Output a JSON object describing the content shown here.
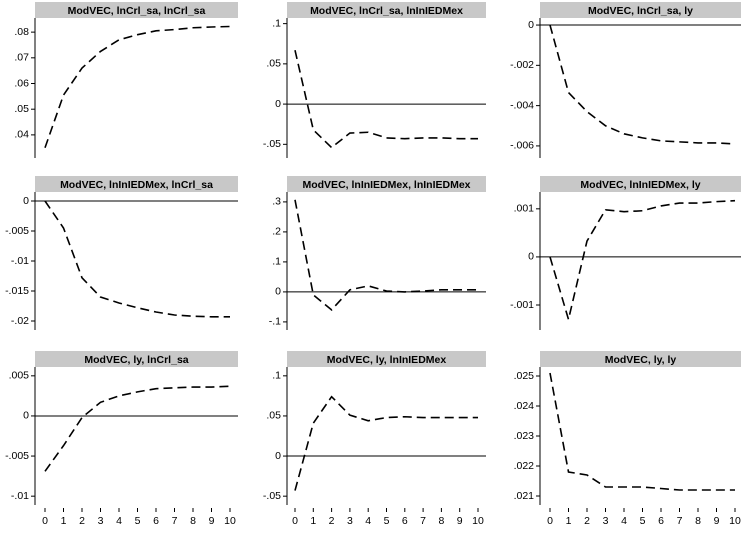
{
  "chart_data": [
    {
      "type": "line",
      "title": "ModVEC, lnCrl_sa, lnCrl_sa",
      "x": [
        0,
        1,
        2,
        3,
        4,
        5,
        6,
        7,
        8,
        9,
        10
      ],
      "values": [
        0.035,
        0.0555,
        0.066,
        0.0725,
        0.077,
        0.079,
        0.0805,
        0.081,
        0.0817,
        0.082,
        0.0822
      ],
      "ylim": [
        0.031,
        0.0855
      ],
      "yticks": [
        {
          "value": 0.04,
          "label": ".04"
        },
        {
          "value": 0.05,
          "label": ".05"
        },
        {
          "value": 0.06,
          "label": ".06"
        },
        {
          "value": 0.07,
          "label": ".07"
        },
        {
          "value": 0.08,
          "label": ".08"
        }
      ],
      "color": "#000000"
    },
    {
      "type": "line",
      "title": "ModVEC, lnCrl_sa, lnInIEDMex",
      "x": [
        0,
        1,
        2,
        3,
        4,
        5,
        6,
        7,
        8,
        9,
        10
      ],
      "values": [
        0.067,
        -0.032,
        -0.054,
        -0.036,
        -0.035,
        -0.042,
        -0.043,
        -0.042,
        -0.042,
        -0.043,
        -0.043
      ],
      "ylim": [
        -0.067,
        0.107
      ],
      "yticks": [
        {
          "value": -0.05,
          "label": "-.05"
        },
        0,
        {
          "value": 0.05,
          "label": ".05"
        },
        {
          "value": 0.1,
          "label": ".1"
        }
      ],
      "yline": 0,
      "color": "#000000"
    },
    {
      "type": "line",
      "title": "ModVEC, lnCrl_sa, ly",
      "x": [
        0,
        1,
        2,
        3,
        4,
        5,
        6,
        7,
        8,
        9,
        10
      ],
      "values": [
        0,
        -0.00335,
        -0.0043,
        -0.005,
        -0.0054,
        -0.0056,
        -0.00575,
        -0.0058,
        -0.00585,
        -0.00585,
        -0.0059
      ],
      "ylim": [
        -0.0066,
        0.00035
      ],
      "yticks": [
        {
          "value": -0.006,
          "label": "-.006"
        },
        {
          "value": -0.004,
          "label": "-.004"
        },
        {
          "value": -0.002,
          "label": "-.002"
        },
        0
      ],
      "yline": 0,
      "color": "#000000"
    },
    {
      "type": "line",
      "title": "ModVEC, lnInIEDMex, lnCrl_sa",
      "x": [
        0,
        1,
        2,
        3,
        4,
        5,
        6,
        7,
        8,
        9,
        10
      ],
      "values": [
        0,
        -0.0045,
        -0.0128,
        -0.016,
        -0.017,
        -0.0178,
        -0.0185,
        -0.019,
        -0.0192,
        -0.0193,
        -0.0193
      ],
      "ylim": [
        -0.0215,
        0.0015
      ],
      "yticks": [
        {
          "value": -0.02,
          "label": "-.02"
        },
        {
          "value": -0.015,
          "label": "-.015"
        },
        {
          "value": -0.01,
          "label": "-.01"
        },
        {
          "value": -0.005,
          "label": "-.005"
        },
        0
      ],
      "yline": 0,
      "color": "#000000"
    },
    {
      "type": "line",
      "title": "ModVEC, lnInIEDMex, lnInIEDMex",
      "x": [
        0,
        1,
        2,
        3,
        4,
        5,
        6,
        7,
        8,
        9,
        10
      ],
      "values": [
        0.307,
        -0.01,
        -0.06,
        0.007,
        0.02,
        0.003,
        0,
        0.003,
        0.007,
        0.007,
        0.007
      ],
      "ylim": [
        -0.127,
        0.333
      ],
      "yticks": [
        {
          "value": -0.1,
          "label": "-.1"
        },
        0,
        {
          "value": 0.1,
          "label": ".1"
        },
        {
          "value": 0.2,
          "label": ".2"
        },
        {
          "value": 0.3,
          "label": ".3"
        }
      ],
      "yline": 0,
      "color": "#000000"
    },
    {
      "type": "line",
      "title": "ModVEC, lnInIEDMex, ly",
      "x": [
        0,
        1,
        2,
        3,
        4,
        5,
        6,
        7,
        8,
        9,
        10
      ],
      "values": [
        0,
        -0.0013,
        0.00033,
        0.00098,
        0.00094,
        0.00096,
        0.00106,
        0.00112,
        0.00112,
        0.00115,
        0.00117
      ],
      "ylim": [
        -0.00152,
        0.00135
      ],
      "yticks": [
        {
          "value": -0.001,
          "label": "-.001"
        },
        0,
        {
          "value": 0.001,
          "label": ".001"
        }
      ],
      "yline": 0,
      "color": "#000000"
    },
    {
      "type": "line",
      "title": "ModVEC, ly, lnCrl_sa",
      "x": [
        0,
        1,
        2,
        3,
        4,
        5,
        6,
        7,
        8,
        9,
        10
      ],
      "values": [
        -0.0069,
        -0.0037,
        -0.0002,
        0.0017,
        0.0025,
        0.003,
        0.0034,
        0.0035,
        0.0036,
        0.0036,
        0.0037
      ],
      "ylim": [
        -0.0111,
        0.0061
      ],
      "yticks": [
        {
          "value": -0.01,
          "label": "-.01"
        },
        {
          "value": -0.005,
          "label": "-.005"
        },
        0,
        {
          "value": 0.005,
          "label": ".005"
        }
      ],
      "xticks": [
        0,
        1,
        2,
        3,
        4,
        5,
        6,
        7,
        8,
        9,
        10
      ],
      "yline": 0,
      "color": "#000000"
    },
    {
      "type": "line",
      "title": "ModVEC, ly, lnInIEDMex",
      "x": [
        0,
        1,
        2,
        3,
        4,
        5,
        6,
        7,
        8,
        9,
        10
      ],
      "values": [
        -0.043,
        0.041,
        0.074,
        0.051,
        0.044,
        0.048,
        0.049,
        0.048,
        0.048,
        0.048,
        0.048
      ],
      "ylim": [
        -0.061,
        0.111
      ],
      "yticks": [
        {
          "value": -0.05,
          "label": "-.05"
        },
        0,
        {
          "value": 0.05,
          "label": ".05"
        },
        {
          "value": 0.1,
          "label": ".1"
        }
      ],
      "xticks": [
        0,
        1,
        2,
        3,
        4,
        5,
        6,
        7,
        8,
        9,
        10
      ],
      "yline": 0,
      "color": "#000000"
    },
    {
      "type": "line",
      "title": "ModVEC, ly, ly",
      "x": [
        0,
        1,
        2,
        3,
        4,
        5,
        6,
        7,
        8,
        9,
        10
      ],
      "values": [
        0.0251,
        0.0218,
        0.0217,
        0.0213,
        0.0213,
        0.0213,
        0.02125,
        0.0212,
        0.0212,
        0.0212,
        0.0212
      ],
      "ylim": [
        0.0207,
        0.0253
      ],
      "yticks": [
        {
          "value": 0.021,
          "label": ".021"
        },
        {
          "value": 0.022,
          "label": ".022"
        },
        {
          "value": 0.023,
          "label": ".023"
        },
        {
          "value": 0.024,
          "label": ".024"
        },
        {
          "value": 0.025,
          "label": ".025"
        }
      ],
      "xticks": [
        0,
        1,
        2,
        3,
        4,
        5,
        6,
        7,
        8,
        9,
        10
      ],
      "color": "#000000"
    }
  ]
}
